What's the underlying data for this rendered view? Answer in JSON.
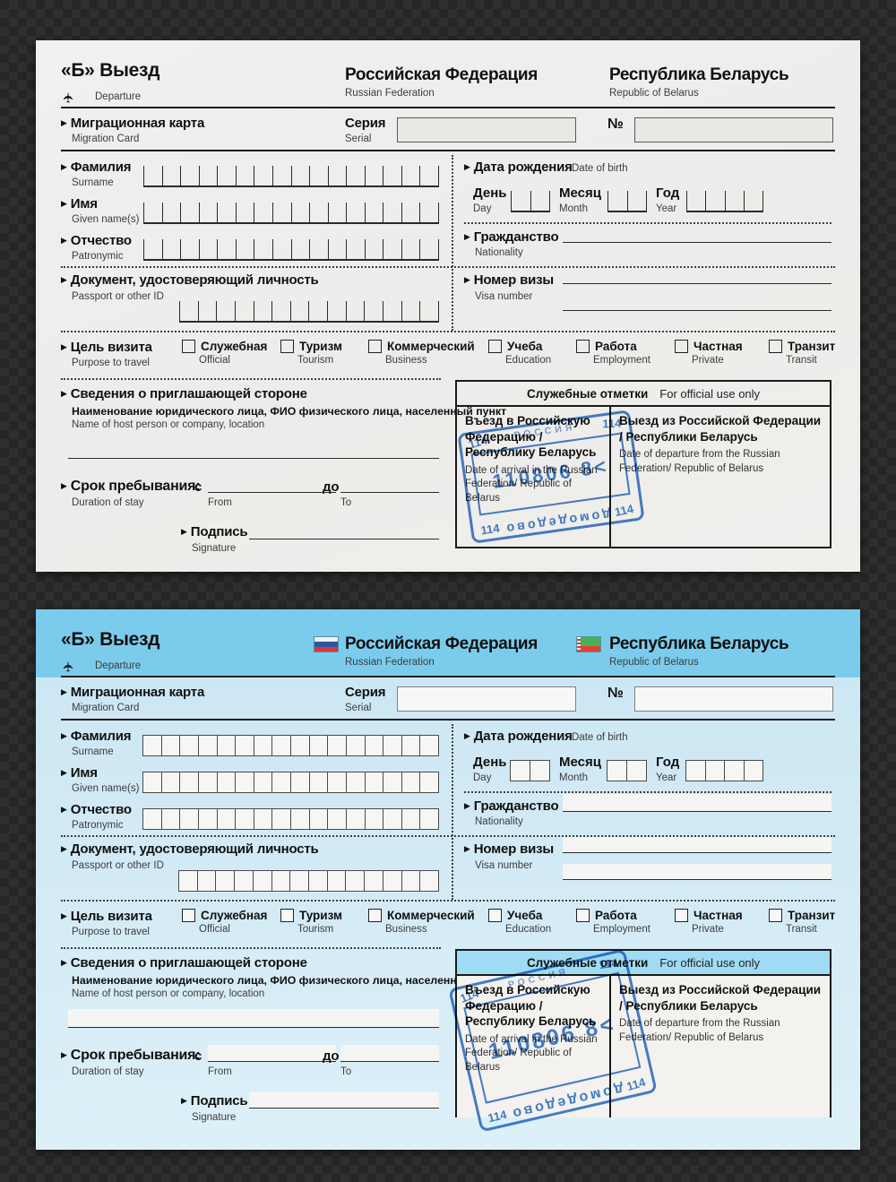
{
  "icons": {
    "arrow": "▶",
    "airplane": "✈"
  },
  "colors": {
    "stamp_blue": "#3474c8",
    "band_blue": "#7bccec",
    "body_blue": "#cfe9f4",
    "paper": "#efeeec"
  },
  "form": {
    "header": {
      "side_label": "«Б» Выезд",
      "side_sublabel": "Departure",
      "country1": "Российская Федерация",
      "country1_en": "Russian Federation",
      "country2": "Республика Беларусь",
      "country2_en": "Republic of Belarus"
    },
    "card_row": {
      "title": "Миграционная карта",
      "title_en": "Migration Card",
      "serial_label": "Серия",
      "serial_label_en": "Serial",
      "serial_value": "",
      "number_label": "№",
      "number_value": ""
    },
    "fields": {
      "surname": {
        "ru": "Фамилия",
        "en": "Surname",
        "cells": 16,
        "value": ""
      },
      "given": {
        "ru": "Имя",
        "en": "Given name(s)",
        "cells": 16,
        "value": ""
      },
      "patronymic": {
        "ru": "Отчество",
        "en": "Patronymic",
        "cells": 16,
        "value": ""
      },
      "dob": {
        "ru": "Дата рождения",
        "en": "Date of birth",
        "day": {
          "ru": "День",
          "en": "Day",
          "cells": 2,
          "value": ""
        },
        "month": {
          "ru": "Месяц",
          "en": "Month",
          "cells": 2,
          "value": ""
        },
        "year": {
          "ru": "Год",
          "en": "Year",
          "cells": 4,
          "value": ""
        }
      },
      "nationality": {
        "ru": "Гражданство",
        "en": "Nationality",
        "value": ""
      },
      "document": {
        "ru": "Документ, удостоверяющий личность",
        "en": "Passport or other ID",
        "cells": 14,
        "value": ""
      },
      "visa": {
        "ru": "Номер визы",
        "en": "Visa number",
        "value": ""
      }
    },
    "purpose": {
      "ru": "Цель визита",
      "en": "Purpose to travel",
      "options": [
        {
          "ru": "Служебная",
          "en": "Official",
          "checked": false
        },
        {
          "ru": "Туризм",
          "en": "Tourism",
          "checked": false
        },
        {
          "ru": "Коммерческий",
          "en": "Business",
          "checked": false
        },
        {
          "ru": "Учеба",
          "en": "Education",
          "checked": false
        },
        {
          "ru": "Работа",
          "en": "Employment",
          "checked": false
        },
        {
          "ru": "Частная",
          "en": "Private",
          "checked": false
        },
        {
          "ru": "Транзит",
          "en": "Transit",
          "checked": false
        }
      ]
    },
    "host": {
      "ru": "Сведения о приглашающей стороне",
      "detail_ru": "Наименование юридического лица, ФИО физического лица, населенный пункт",
      "detail_en": "Name of host person or company, location",
      "value": ""
    },
    "stay": {
      "ru": "Срок пребывания:",
      "en": "Duration of stay",
      "from_ru": "с",
      "from_en": "From",
      "from_value": "",
      "to_ru": "до",
      "to_en": "To",
      "to_value": ""
    },
    "signature": {
      "ru": "Подпись",
      "en": "Signature",
      "value": ""
    },
    "official": {
      "ru": "Служебные отметки",
      "en": "For official use only",
      "arrival_ru": "Въезд в Российскую Федерацию / Республику Беларусь",
      "arrival_en": "Date of arrival in the Russian Federation/ Republic of Belarus",
      "departure_ru": "Выезд из Российской Федерации / Республики Беларусь",
      "departure_en": "Date of departure from the Russian Federation/ Republic of Belarus"
    },
    "stamp": {
      "top_text": "РОССИЯ",
      "digits": "110806 8<",
      "city": "домодедово",
      "corner": "114"
    }
  }
}
